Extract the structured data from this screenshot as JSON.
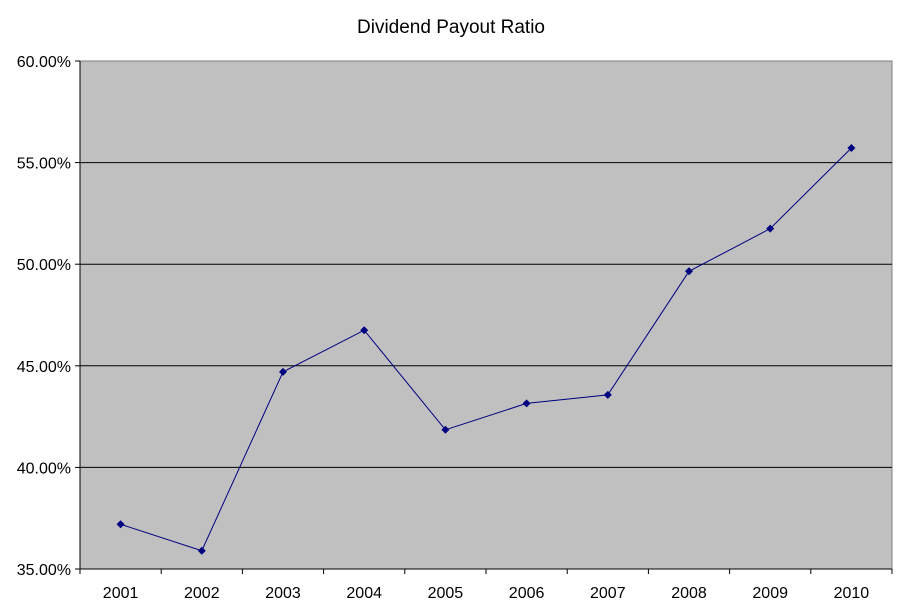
{
  "chart_data": {
    "type": "line",
    "title": "Dividend Payout Ratio",
    "xlabel": "",
    "ylabel": "",
    "categories": [
      "2001",
      "2002",
      "2003",
      "2004",
      "2005",
      "2006",
      "2007",
      "2008",
      "2009",
      "2010"
    ],
    "series": [
      {
        "values": [
          37.2,
          35.9,
          44.7,
          46.75,
          41.85,
          43.15,
          43.57,
          49.65,
          51.75,
          55.72
        ]
      }
    ],
    "ylim": [
      35,
      60
    ],
    "yticks": [
      35,
      40,
      45,
      50,
      55,
      60
    ],
    "ytick_labels": [
      "35.00%",
      "40.00%",
      "45.00%",
      "50.00%",
      "55.00%",
      "60.00%"
    ],
    "grid": "horizontal",
    "legend": "none",
    "colors": {
      "plot_background": "#c0c0c0",
      "line": "#000080",
      "marker": "#000080",
      "gridline": "#000000"
    }
  }
}
